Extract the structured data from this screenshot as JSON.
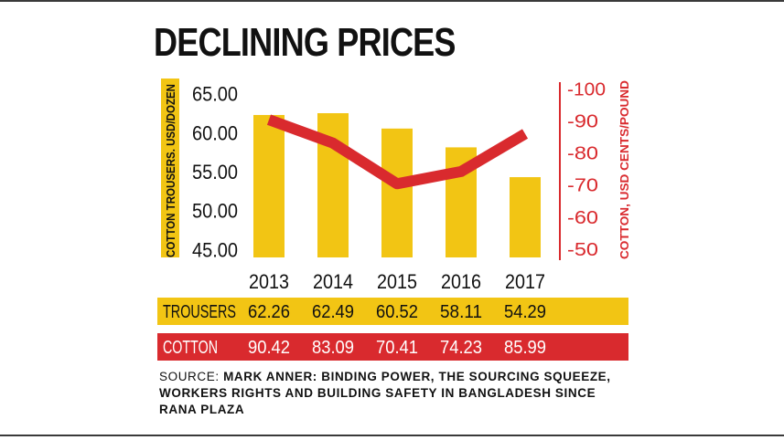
{
  "chart_data": {
    "type": "bar",
    "title": "DECLINING PRICES",
    "categories": [
      "2013",
      "2014",
      "2015",
      "2016",
      "2017"
    ],
    "series": [
      {
        "name": "TROUSERS",
        "type": "bar",
        "axis": "left",
        "color": "#f2c514",
        "values": [
          62.26,
          62.49,
          60.52,
          58.11,
          54.29
        ]
      },
      {
        "name": "COTTON",
        "type": "line",
        "axis": "right",
        "color": "#d92a2e",
        "values": [
          90.42,
          83.09,
          70.41,
          74.23,
          85.99
        ]
      }
    ],
    "y_left": {
      "label": "COTTON TROUSERS. USD/DOZEN",
      "ticks": [
        "65.00",
        "60.00",
        "55.00",
        "50.00",
        "45.00"
      ],
      "tick_values": [
        65,
        60,
        55,
        50,
        45
      ],
      "ylim": [
        44,
        66
      ]
    },
    "y_right": {
      "label": "COTTON, USD CENTS/POUND",
      "ticks": [
        "-100",
        "-90",
        "-80",
        "-70",
        "-60",
        "-50"
      ],
      "tick_values": [
        100,
        90,
        80,
        70,
        60,
        50
      ],
      "ylim": [
        47.4,
        101
      ]
    },
    "table_rows": [
      {
        "label": "TROUSERS",
        "color": "#f2c514",
        "text_color": "#111111",
        "values": [
          "62.26",
          "62.49",
          "60.52",
          "58.11",
          "54.29"
        ]
      },
      {
        "label": "COTTON",
        "color": "#d92a2e",
        "text_color": "#ffffff",
        "values": [
          "90.42",
          "83.09",
          "70.41",
          "74.23",
          "85.99"
        ]
      }
    ]
  },
  "source": {
    "prefix": "SOURCE: ",
    "text": "MARK ANNER: BINDING POWER, THE SOURCING SQUEEZE, WORKERS RIGHTS AND BUILDING SAFETY IN BANGLADESH SINCE RANA PLAZA"
  }
}
